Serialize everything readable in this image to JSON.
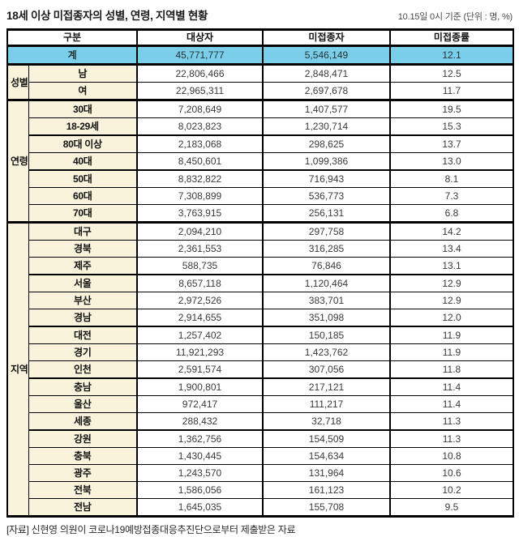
{
  "title": "18세 이상 미접종자의 성별, 연령, 지역별 현황",
  "caption": "10.15일 0시 기준 (단위 : 명, %)",
  "footer": "[자료] 신현영 의원이 코로나19예방접종대응추진단으로부터 제출받은 자료",
  "colors": {
    "highlight_row": "#7bcee9",
    "label_cell": "#faf3dc",
    "border": "#000000"
  },
  "chart_data": {
    "type": "table",
    "title": "18세 이상 미접종자의 성별, 연령, 지역별 현황",
    "columns": [
      "구분",
      "대상자",
      "미접종자",
      "미접종률"
    ],
    "total": {
      "label": "계",
      "values": [
        "45,771,777",
        "5,546,149",
        "12.1"
      ]
    },
    "sections": [
      {
        "group": "성별",
        "rows": [
          {
            "label": "남",
            "values": [
              "22,806,466",
              "2,848,471",
              "12.5"
            ]
          },
          {
            "label": "여",
            "values": [
              "22,965,311",
              "2,697,678",
              "11.7"
            ]
          }
        ]
      },
      {
        "group": "연령",
        "rows": [
          {
            "label": "30대",
            "values": [
              "7,208,649",
              "1,407,577",
              "19.5"
            ]
          },
          {
            "label": "18-29세",
            "values": [
              "8,023,823",
              "1,230,714",
              "15.3"
            ],
            "sep": true
          },
          {
            "label": "80대 이상",
            "values": [
              "2,183,068",
              "298,625",
              "13.7"
            ]
          },
          {
            "label": "40대",
            "values": [
              "8,450,601",
              "1,099,386",
              "13.0"
            ],
            "sep": true
          },
          {
            "label": "50대",
            "values": [
              "8,832,822",
              "716,943",
              "8.1"
            ]
          },
          {
            "label": "60대",
            "values": [
              "7,308,899",
              "536,773",
              "7.3"
            ]
          },
          {
            "label": "70대",
            "values": [
              "3,763,915",
              "256,131",
              "6.8"
            ]
          }
        ]
      },
      {
        "group": "지역",
        "rows": [
          {
            "label": "대구",
            "values": [
              "2,094,210",
              "297,758",
              "14.2"
            ]
          },
          {
            "label": "경북",
            "values": [
              "2,361,553",
              "316,285",
              "13.4"
            ]
          },
          {
            "label": "제주",
            "values": [
              "588,735",
              "76,846",
              "13.1"
            ],
            "sep": true
          },
          {
            "label": "서울",
            "values": [
              "8,657,118",
              "1,120,464",
              "12.9"
            ]
          },
          {
            "label": "부산",
            "values": [
              "2,972,526",
              "383,701",
              "12.9"
            ]
          },
          {
            "label": "경남",
            "values": [
              "2,914,655",
              "351,098",
              "12.0"
            ],
            "sep": true
          },
          {
            "label": "대전",
            "values": [
              "1,257,402",
              "150,185",
              "11.9"
            ]
          },
          {
            "label": "경기",
            "values": [
              "11,921,293",
              "1,423,762",
              "11.9"
            ]
          },
          {
            "label": "인천",
            "values": [
              "2,591,574",
              "307,056",
              "11.8"
            ],
            "sep": true
          },
          {
            "label": "충남",
            "values": [
              "1,900,801",
              "217,121",
              "11.4"
            ]
          },
          {
            "label": "울산",
            "values": [
              "972,417",
              "111,217",
              "11.4"
            ]
          },
          {
            "label": "세종",
            "values": [
              "288,432",
              "32,718",
              "11.3"
            ],
            "sep": true
          },
          {
            "label": "강원",
            "values": [
              "1,362,756",
              "154,509",
              "11.3"
            ]
          },
          {
            "label": "충북",
            "values": [
              "1,430,445",
              "154,634",
              "10.8"
            ]
          },
          {
            "label": "광주",
            "values": [
              "1,243,570",
              "131,964",
              "10.6"
            ]
          },
          {
            "label": "전북",
            "values": [
              "1,586,056",
              "161,123",
              "10.2"
            ]
          },
          {
            "label": "전남",
            "values": [
              "1,645,035",
              "155,708",
              "9.5"
            ]
          }
        ]
      }
    ]
  }
}
